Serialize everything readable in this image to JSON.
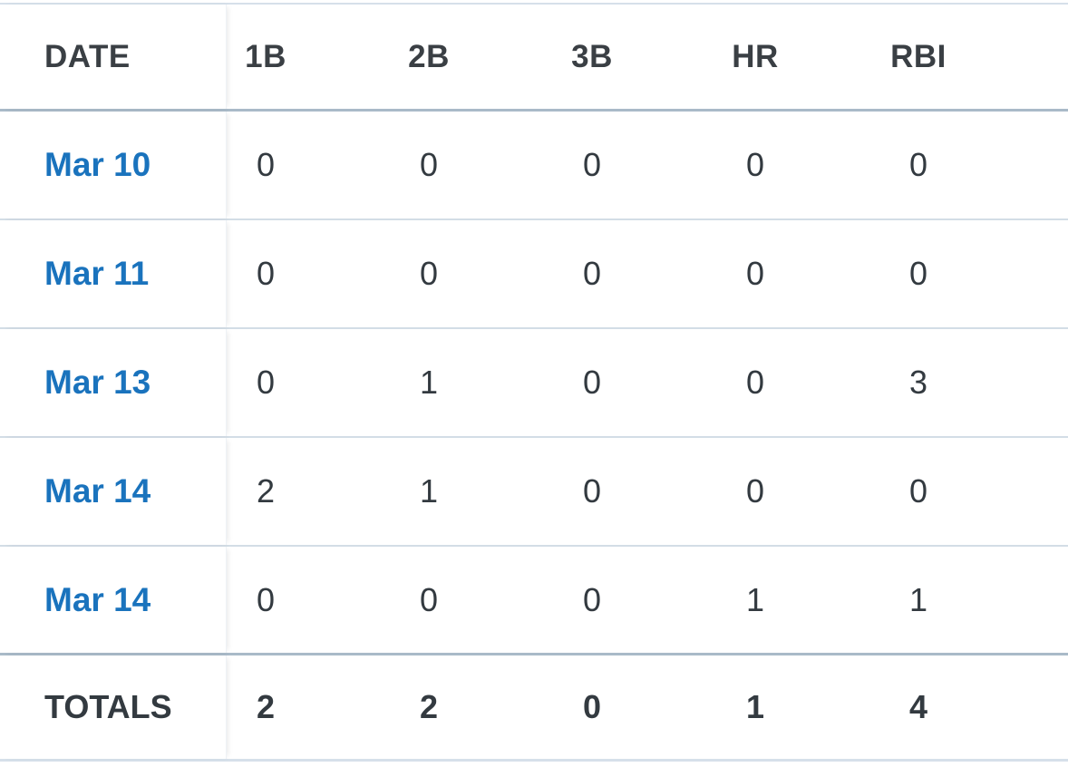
{
  "table": {
    "headers": [
      "DATE",
      "1B",
      "2B",
      "3B",
      "HR",
      "RBI"
    ],
    "rows": [
      {
        "date": "Mar 10",
        "values": [
          "0",
          "0",
          "0",
          "0",
          "0"
        ]
      },
      {
        "date": "Mar 11",
        "values": [
          "0",
          "0",
          "0",
          "0",
          "0"
        ]
      },
      {
        "date": "Mar 13",
        "values": [
          "0",
          "1",
          "0",
          "0",
          "3"
        ]
      },
      {
        "date": "Mar 14",
        "values": [
          "2",
          "1",
          "0",
          "0",
          "0"
        ]
      },
      {
        "date": "Mar 14",
        "values": [
          "0",
          "0",
          "0",
          "1",
          "1"
        ]
      }
    ],
    "totals": {
      "label": "TOTALS",
      "values": [
        "2",
        "2",
        "0",
        "1",
        "4"
      ]
    }
  },
  "colors": {
    "link": "#1a73bd",
    "text": "#333a40",
    "strong_border": "#a9bac8",
    "light_border": "#d3dde6"
  }
}
